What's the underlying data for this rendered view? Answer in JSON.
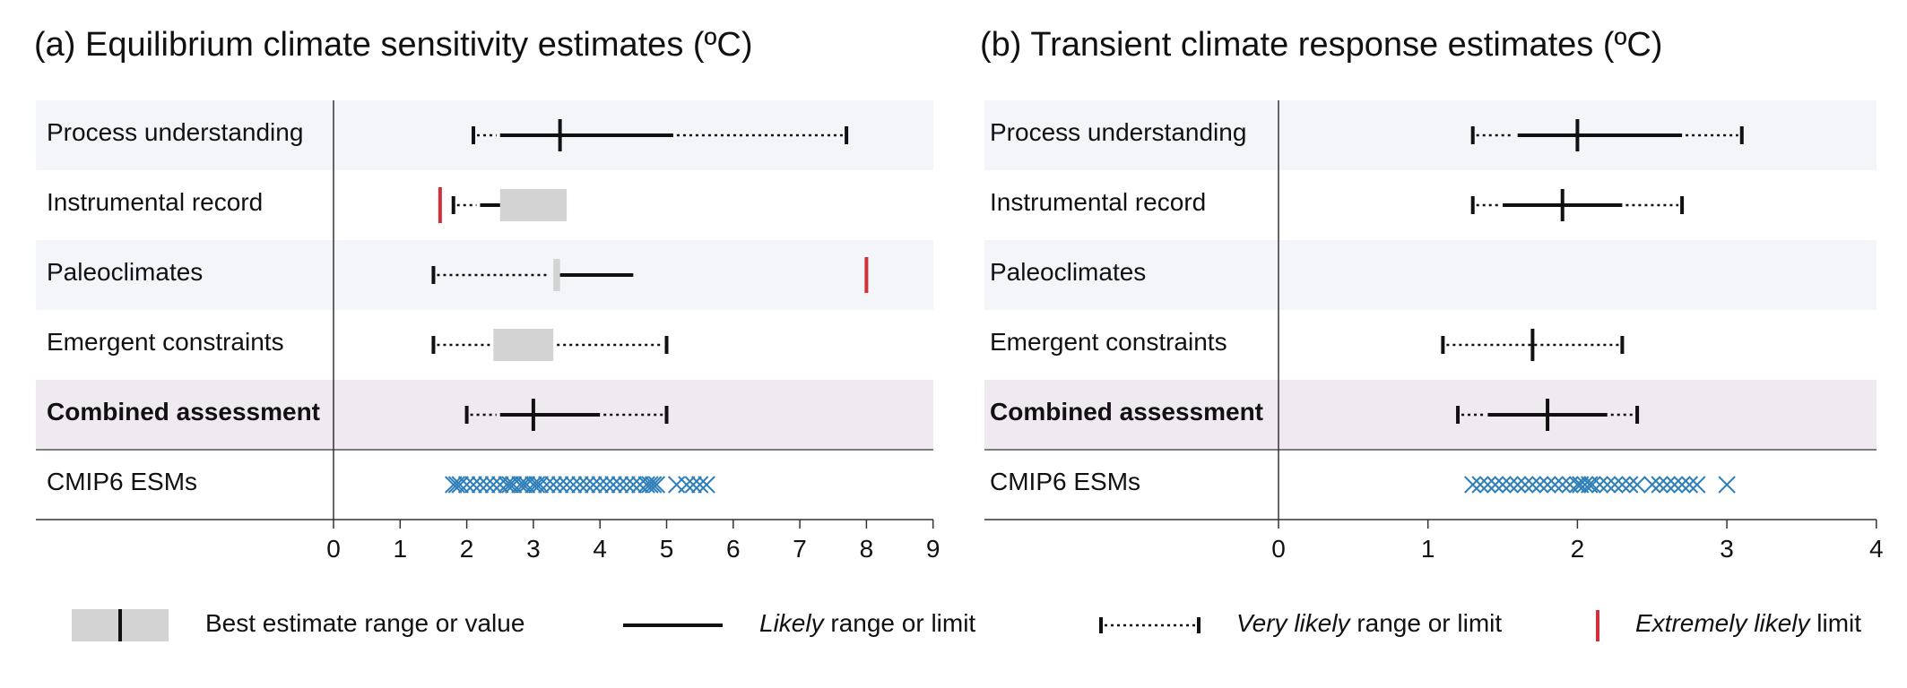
{
  "colors": {
    "row_shade": "#f4f5f9",
    "row_combined": "#efe9f0",
    "best_box": "#d3d3d3",
    "extremely_likely": "#d32f3a",
    "cmip_marker": "#2f7fb8",
    "line": "#111111"
  },
  "rows": [
    {
      "label": "Process understanding",
      "bold": false,
      "shade": "row_shade"
    },
    {
      "label": "Instrumental record",
      "bold": false,
      "shade": "none"
    },
    {
      "label": "Paleoclimates",
      "bold": false,
      "shade": "row_shade"
    },
    {
      "label": "Emergent constraints",
      "bold": false,
      "shade": "none"
    },
    {
      "label": "Combined assessment",
      "bold": true,
      "shade": "row_combined"
    },
    {
      "label": "CMIP6 ESMs",
      "bold": false,
      "shade": "none"
    }
  ],
  "legend": {
    "best_estimate": "Best estimate range or value",
    "likely_italic": "Likely",
    "likely_rest": " range or limit",
    "very_likely_italic": "Very likely",
    "very_likely_rest": " range or limit",
    "extremely_likely_italic": "Extremely likely",
    "extremely_likely_rest": " limit"
  },
  "chart_data": [
    {
      "type": "interval",
      "title": "(a) Equilibrium climate sensitivity  estimates (ºC)",
      "xlim": [
        0,
        9
      ],
      "xticks": [
        0,
        1,
        2,
        3,
        4,
        5,
        6,
        7,
        8,
        9
      ],
      "rows": [
        {
          "label": "Process understanding",
          "very_likely": [
            2.1,
            7.7
          ],
          "likely": [
            2.5,
            5.1
          ],
          "best": 3.4
        },
        {
          "label": "Instrumental record",
          "very_likely": [
            1.8,
            null
          ],
          "likely": [
            2.2,
            null
          ],
          "best_range": [
            2.5,
            3.5
          ],
          "extremely_likely": [
            1.6
          ]
        },
        {
          "label": "Paleoclimates",
          "very_likely": [
            1.5,
            null
          ],
          "likely": [
            null,
            4.5
          ],
          "best_range": [
            3.3,
            3.4
          ],
          "extremely_likely": [
            8.0
          ]
        },
        {
          "label": "Emergent constraints",
          "very_likely": [
            1.5,
            5.0
          ],
          "best_range": [
            2.4,
            3.3
          ]
        },
        {
          "label": "Combined assessment",
          "very_likely": [
            2.0,
            5.0
          ],
          "likely": [
            2.5,
            4.0
          ],
          "best": 3.0
        },
        {
          "label": "CMIP6 ESMs",
          "points": [
            1.8,
            1.85,
            1.9,
            2.0,
            2.1,
            2.2,
            2.3,
            2.4,
            2.5,
            2.6,
            2.65,
            2.7,
            2.8,
            2.85,
            2.9,
            3.0,
            3.05,
            3.1,
            3.2,
            3.3,
            3.4,
            3.5,
            3.6,
            3.7,
            3.8,
            3.9,
            4.0,
            4.1,
            4.2,
            4.3,
            4.4,
            4.5,
            4.6,
            4.7,
            4.75,
            4.8,
            4.85,
            5.15,
            5.3,
            5.4,
            5.5,
            5.6
          ]
        }
      ]
    },
    {
      "type": "interval",
      "title": "(b) Transient climate response estimates (ºC)",
      "xlim": [
        0,
        4
      ],
      "xticks": [
        0,
        1,
        2,
        3,
        4
      ],
      "rows": [
        {
          "label": "Process understanding",
          "very_likely": [
            1.3,
            3.1
          ],
          "likely": [
            1.6,
            2.7
          ],
          "best": 2.0
        },
        {
          "label": "Instrumental record",
          "very_likely": [
            1.3,
            2.7
          ],
          "likely": [
            1.5,
            2.3
          ],
          "best": 1.9
        },
        {
          "label": "Paleoclimates"
        },
        {
          "label": "Emergent constraints",
          "very_likely": [
            1.1,
            2.3
          ],
          "best": 1.7
        },
        {
          "label": "Combined assessment",
          "very_likely": [
            1.2,
            2.4
          ],
          "likely": [
            1.4,
            2.2
          ],
          "best": 1.8
        },
        {
          "label": "CMIP6 ESMs",
          "points": [
            1.3,
            1.35,
            1.4,
            1.45,
            1.5,
            1.55,
            1.6,
            1.65,
            1.7,
            1.75,
            1.8,
            1.85,
            1.9,
            1.95,
            2.0,
            2.02,
            2.05,
            2.08,
            2.1,
            2.15,
            2.2,
            2.25,
            2.3,
            2.35,
            2.4,
            2.5,
            2.55,
            2.6,
            2.65,
            2.7,
            2.75,
            2.8,
            3.0
          ]
        }
      ]
    }
  ]
}
